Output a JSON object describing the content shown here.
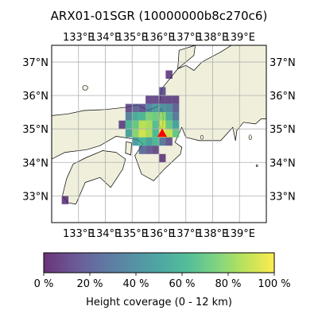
{
  "title": "ARX01-01SGR (10000000b8c270c6)",
  "map": {
    "lon_range": [
      132.0,
      140.0
    ],
    "lat_range": [
      32.2,
      37.5
    ],
    "lon_ticks": [
      133,
      134,
      135,
      136,
      137,
      138,
      139
    ],
    "lat_ticks": [
      33,
      34,
      35,
      36,
      37
    ],
    "lon_tick_labels": [
      "133°E",
      "134°E",
      "135°E",
      "136°E",
      "137°E",
      "138°E",
      "139°E"
    ],
    "lat_tick_labels": [
      "33°N",
      "34°N",
      "35°N",
      "36°N",
      "37°N"
    ],
    "grid": true,
    "land_color": "#efefdb",
    "sea_color": "#ffffff",
    "marker": {
      "shape": "triangle",
      "color": "#ff0000",
      "lon": 136.12,
      "lat": 34.87
    }
  },
  "colorbar": {
    "label": "Height coverage (0 - 12 km)",
    "tick_labels": [
      "0 %",
      "20 %",
      "40 %",
      "60 %",
      "80 %",
      "100 %"
    ],
    "colormap": "viridis",
    "alpha": 0.8
  },
  "chart_data": {
    "type": "heatmap",
    "cell_size_deg": 0.25,
    "value_unit": "%",
    "cells": [
      {
        "lon": 132.5,
        "lat": 32.875,
        "v": 8
      },
      {
        "lon": 135.625,
        "lat": 35.875,
        "v": 10
      },
      {
        "lon": 135.875,
        "lat": 35.875,
        "v": 10
      },
      {
        "lon": 136.125,
        "lat": 35.875,
        "v": 10
      },
      {
        "lon": 136.375,
        "lat": 35.875,
        "v": 10
      },
      {
        "lon": 136.625,
        "lat": 35.875,
        "v": 10
      },
      {
        "lon": 136.375,
        "lat": 36.625,
        "v": 8
      },
      {
        "lon": 136.125,
        "lat": 36.125,
        "v": 15
      },
      {
        "lon": 134.875,
        "lat": 35.625,
        "v": 12
      },
      {
        "lon": 135.125,
        "lat": 35.625,
        "v": 22
      },
      {
        "lon": 135.375,
        "lat": 35.625,
        "v": 15
      },
      {
        "lon": 135.625,
        "lat": 35.625,
        "v": 35
      },
      {
        "lon": 135.875,
        "lat": 35.625,
        "v": 45
      },
      {
        "lon": 136.125,
        "lat": 35.625,
        "v": 42
      },
      {
        "lon": 136.375,
        "lat": 35.625,
        "v": 38
      },
      {
        "lon": 136.625,
        "lat": 35.625,
        "v": 20
      },
      {
        "lon": 134.875,
        "lat": 35.375,
        "v": 35
      },
      {
        "lon": 135.125,
        "lat": 35.375,
        "v": 55
      },
      {
        "lon": 135.375,
        "lat": 35.375,
        "v": 60
      },
      {
        "lon": 135.625,
        "lat": 35.375,
        "v": 75
      },
      {
        "lon": 135.875,
        "lat": 35.375,
        "v": 72
      },
      {
        "lon": 136.125,
        "lat": 35.375,
        "v": 80
      },
      {
        "lon": 136.375,
        "lat": 35.375,
        "v": 55
      },
      {
        "lon": 136.625,
        "lat": 35.375,
        "v": 30
      },
      {
        "lon": 134.625,
        "lat": 35.125,
        "v": 10
      },
      {
        "lon": 134.875,
        "lat": 35.125,
        "v": 60
      },
      {
        "lon": 135.125,
        "lat": 35.125,
        "v": 70
      },
      {
        "lon": 135.375,
        "lat": 35.125,
        "v": 88
      },
      {
        "lon": 135.625,
        "lat": 35.125,
        "v": 85
      },
      {
        "lon": 135.875,
        "lat": 35.125,
        "v": 65
      },
      {
        "lon": 136.125,
        "lat": 35.125,
        "v": 90
      },
      {
        "lon": 136.375,
        "lat": 35.125,
        "v": 70
      },
      {
        "lon": 136.625,
        "lat": 35.125,
        "v": 50
      },
      {
        "lon": 134.875,
        "lat": 34.875,
        "v": 50
      },
      {
        "lon": 135.125,
        "lat": 34.875,
        "v": 78
      },
      {
        "lon": 135.375,
        "lat": 34.875,
        "v": 92
      },
      {
        "lon": 135.625,
        "lat": 34.875,
        "v": 85
      },
      {
        "lon": 135.875,
        "lat": 34.875,
        "v": 62
      },
      {
        "lon": 136.125,
        "lat": 34.875,
        "v": 95
      },
      {
        "lon": 136.375,
        "lat": 34.875,
        "v": 90
      },
      {
        "lon": 136.625,
        "lat": 34.875,
        "v": 70
      },
      {
        "lon": 135.125,
        "lat": 34.625,
        "v": 45
      },
      {
        "lon": 135.375,
        "lat": 34.625,
        "v": 60
      },
      {
        "lon": 135.625,
        "lat": 34.625,
        "v": 50
      },
      {
        "lon": 135.875,
        "lat": 34.625,
        "v": 62
      },
      {
        "lon": 136.125,
        "lat": 34.625,
        "v": 30
      },
      {
        "lon": 136.375,
        "lat": 34.625,
        "v": 15
      },
      {
        "lon": 135.375,
        "lat": 34.375,
        "v": 25
      },
      {
        "lon": 135.625,
        "lat": 34.375,
        "v": 18
      },
      {
        "lon": 135.875,
        "lat": 34.375,
        "v": 12
      },
      {
        "lon": 136.125,
        "lat": 34.125,
        "v": 8
      }
    ]
  }
}
